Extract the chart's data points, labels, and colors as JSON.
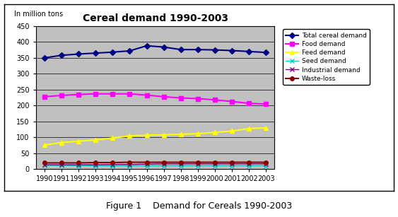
{
  "title": "Cereal demand 1990-2003",
  "subtitle": "In million tons",
  "figure_caption": "Figure 1    Demand for Cereals 1990-2003",
  "years": [
    1990,
    1991,
    1992,
    1993,
    1994,
    1995,
    1996,
    1997,
    1998,
    1999,
    2000,
    2001,
    2002,
    2003
  ],
  "series": [
    {
      "name": "Total cereal demand",
      "values": [
        350,
        358,
        362,
        365,
        368,
        372,
        388,
        384,
        376,
        376,
        375,
        373,
        370,
        367
      ],
      "color": "#000080",
      "marker": "D",
      "markersize": 4,
      "linewidth": 1.5
    },
    {
      "name": "Food demand",
      "values": [
        228,
        232,
        235,
        237,
        237,
        237,
        233,
        228,
        224,
        222,
        218,
        213,
        207,
        205
      ],
      "color": "#FF00FF",
      "marker": "s",
      "markersize": 4,
      "linewidth": 1.5
    },
    {
      "name": "Feed demand",
      "values": [
        76,
        84,
        88,
        92,
        98,
        105,
        107,
        108,
        110,
        112,
        116,
        120,
        128,
        130
      ],
      "color": "#FFFF00",
      "marker": "^",
      "markersize": 4,
      "linewidth": 1.5
    },
    {
      "name": "Seed demand",
      "values": [
        12,
        12,
        11,
        11,
        11,
        11,
        11,
        11,
        11,
        11,
        11,
        11,
        11,
        11
      ],
      "color": "#00CCCC",
      "marker": "x",
      "markersize": 4,
      "linewidth": 1.0
    },
    {
      "name": "Industrial demand",
      "values": [
        14,
        14,
        14,
        14,
        15,
        15,
        16,
        17,
        17,
        17,
        17,
        17,
        17,
        17
      ],
      "color": "#800080",
      "marker": "x",
      "markersize": 4,
      "linewidth": 1.0
    },
    {
      "name": "Waste-loss",
      "values": [
        20,
        20,
        20,
        21,
        21,
        22,
        22,
        22,
        22,
        22,
        22,
        22,
        22,
        22
      ],
      "color": "#8B0000",
      "marker": "o",
      "markersize": 4,
      "linewidth": 1.5
    }
  ],
  "ylim": [
    0,
    450
  ],
  "yticks": [
    0,
    50,
    100,
    150,
    200,
    250,
    300,
    350,
    400,
    450
  ],
  "plot_bg_color": "#C0C0C0",
  "fig_bg_color": "#FFFFFF",
  "grid_color": "#000000",
  "grid_linewidth": 0.5
}
